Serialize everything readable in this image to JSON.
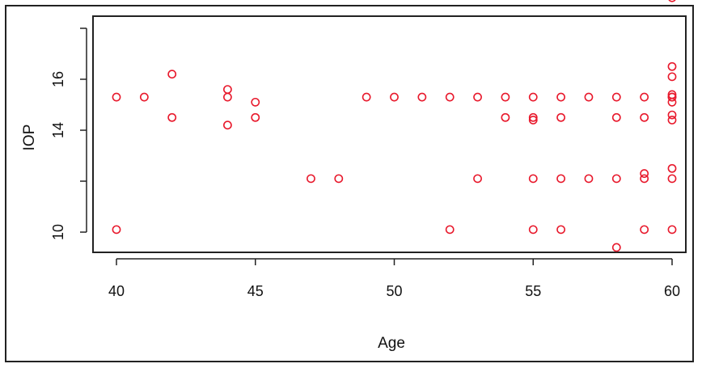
{
  "chart_data": {
    "type": "scatter",
    "title": "",
    "xlabel": "Age",
    "ylabel": "IOP",
    "xlim": [
      39,
      61
    ],
    "ylim": [
      9.2,
      19.6
    ],
    "x_ticks": [
      40,
      45,
      50,
      55,
      60
    ],
    "y_ticks": [
      10,
      14,
      16
    ],
    "grid": false,
    "marker_color": "#e8192c",
    "points": [
      {
        "x": 40,
        "y": 15.3
      },
      {
        "x": 40,
        "y": 10.1
      },
      {
        "x": 41,
        "y": 15.3
      },
      {
        "x": 42,
        "y": 16.2
      },
      {
        "x": 42,
        "y": 14.5
      },
      {
        "x": 44,
        "y": 15.6
      },
      {
        "x": 44,
        "y": 15.3
      },
      {
        "x": 44,
        "y": 14.2
      },
      {
        "x": 45,
        "y": 15.1
      },
      {
        "x": 45,
        "y": 14.5
      },
      {
        "x": 47,
        "y": 12.1
      },
      {
        "x": 48,
        "y": 12.1
      },
      {
        "x": 49,
        "y": 15.3
      },
      {
        "x": 50,
        "y": 15.3
      },
      {
        "x": 51,
        "y": 15.3
      },
      {
        "x": 52,
        "y": 15.3
      },
      {
        "x": 52,
        "y": 10.1
      },
      {
        "x": 53,
        "y": 15.3
      },
      {
        "x": 53,
        "y": 12.1
      },
      {
        "x": 54,
        "y": 15.3
      },
      {
        "x": 54,
        "y": 14.5
      },
      {
        "x": 55,
        "y": 15.3
      },
      {
        "x": 55,
        "y": 14.4
      },
      {
        "x": 55,
        "y": 14.5
      },
      {
        "x": 55,
        "y": 12.1
      },
      {
        "x": 55,
        "y": 10.1
      },
      {
        "x": 56,
        "y": 15.3
      },
      {
        "x": 56,
        "y": 14.5
      },
      {
        "x": 56,
        "y": 12.1
      },
      {
        "x": 56,
        "y": 10.1
      },
      {
        "x": 57,
        "y": 15.3
      },
      {
        "x": 57,
        "y": 12.1
      },
      {
        "x": 58,
        "y": 15.3
      },
      {
        "x": 58,
        "y": 14.5
      },
      {
        "x": 58,
        "y": 12.1
      },
      {
        "x": 58,
        "y": 9.4
      },
      {
        "x": 59,
        "y": 15.3
      },
      {
        "x": 59,
        "y": 14.5
      },
      {
        "x": 59,
        "y": 12.3
      },
      {
        "x": 59,
        "y": 12.1
      },
      {
        "x": 59,
        "y": 10.1
      },
      {
        "x": 60,
        "y": 19.2
      },
      {
        "x": 60,
        "y": 16.5
      },
      {
        "x": 60,
        "y": 16.1
      },
      {
        "x": 60,
        "y": 15.4
      },
      {
        "x": 60,
        "y": 15.3
      },
      {
        "x": 60,
        "y": 15.3
      },
      {
        "x": 60,
        "y": 15.1
      },
      {
        "x": 60,
        "y": 14.6
      },
      {
        "x": 60,
        "y": 14.4
      },
      {
        "x": 60,
        "y": 12.5
      },
      {
        "x": 60,
        "y": 12.1
      },
      {
        "x": 60,
        "y": 10.1
      }
    ]
  }
}
